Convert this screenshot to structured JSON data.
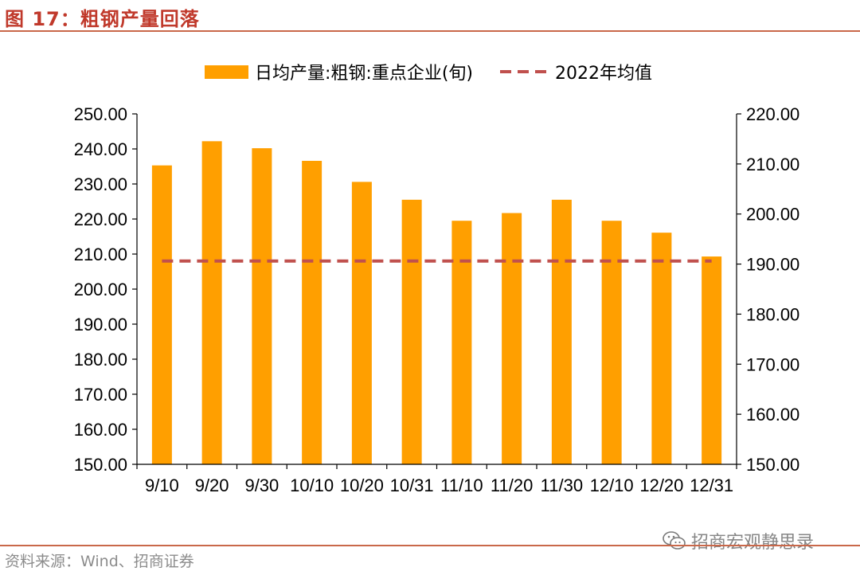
{
  "header": {
    "title": "图 17：粗钢产量回落"
  },
  "footer": {
    "source": "资料来源：Wind、招商证券",
    "watermark": "招商宏观静思录"
  },
  "colors": {
    "bar": "#ff9f00",
    "avg_line": "#c0504d",
    "title": "#c0392b"
  },
  "chart_data": {
    "type": "bar",
    "title": "",
    "categories": [
      "9/10",
      "9/20",
      "9/30",
      "10/10",
      "10/20",
      "10/31",
      "11/10",
      "11/20",
      "11/30",
      "12/10",
      "12/20",
      "12/31"
    ],
    "series": [
      {
        "name": "日均产量:粗钢:重点企业(旬)",
        "type": "bar",
        "axis": "left",
        "values": [
          235.3,
          242.2,
          240.2,
          236.6,
          230.6,
          225.5,
          219.5,
          221.7,
          225.5,
          219.5,
          216.1,
          209.3
        ]
      },
      {
        "name": "2022年均值",
        "type": "line",
        "style": "dashed",
        "axis": "right",
        "values": [
          190.6,
          190.6,
          190.6,
          190.6,
          190.6,
          190.6,
          190.6,
          190.6,
          190.6,
          190.6,
          190.6,
          190.6
        ]
      }
    ],
    "y_left": {
      "min": 150,
      "max": 250,
      "step": 10,
      "ticks": [
        "150.00",
        "160.00",
        "170.00",
        "180.00",
        "190.00",
        "200.00",
        "210.00",
        "220.00",
        "230.00",
        "240.00",
        "250.00"
      ]
    },
    "y_right": {
      "min": 150,
      "max": 220,
      "step": 10,
      "ticks": [
        "150.00",
        "160.00",
        "170.00",
        "180.00",
        "190.00",
        "200.00",
        "210.00",
        "220.00"
      ]
    },
    "legend_position": "top-center",
    "grid": false
  }
}
